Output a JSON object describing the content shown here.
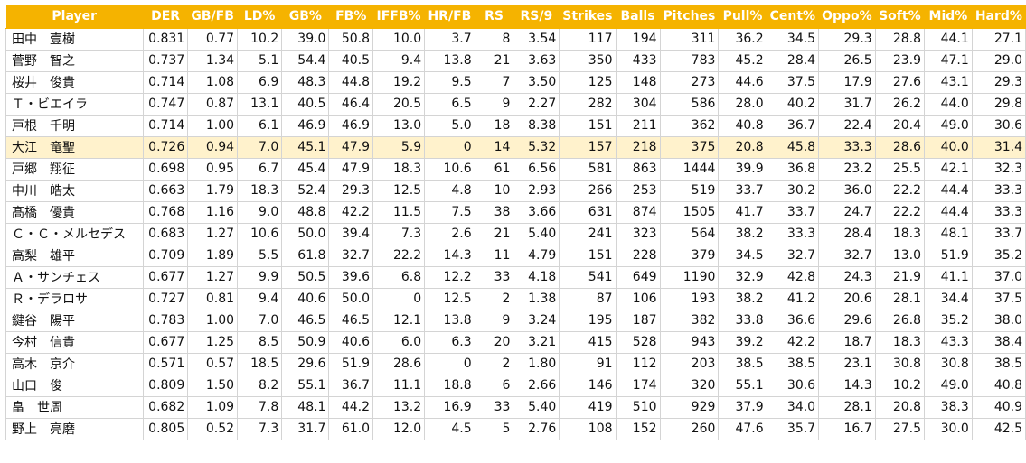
{
  "colors": {
    "header_bg": "#f5b300",
    "header_text": "#ffffff",
    "highlight_row": "#fff2cc",
    "grid": "#d4d4d4"
  },
  "columns": [
    "Player",
    "DER",
    "GB/FB",
    "LD%",
    "GB%",
    "FB%",
    "IFFB%",
    "HR/FB",
    "RS",
    "RS/9",
    "Strikes",
    "Balls",
    "Pitches",
    "Pull%",
    "Cent%",
    "Oppo%",
    "Soft%",
    "Mid%",
    "Hard%"
  ],
  "highlighted_row": 5,
  "rows": [
    [
      "田中　壹樹",
      "0.831",
      "0.77",
      "10.2",
      "39.0",
      "50.8",
      "10.0",
      "3.7",
      "8",
      "3.54",
      "117",
      "194",
      "311",
      "36.2",
      "34.5",
      "29.3",
      "28.8",
      "44.1",
      "27.1"
    ],
    [
      "菅野　智之",
      "0.737",
      "1.34",
      "5.1",
      "54.4",
      "40.5",
      "9.4",
      "13.8",
      "21",
      "3.63",
      "350",
      "433",
      "783",
      "45.2",
      "28.4",
      "26.5",
      "23.9",
      "47.1",
      "29.0"
    ],
    [
      "桜井　俊貴",
      "0.714",
      "1.08",
      "6.9",
      "48.3",
      "44.8",
      "19.2",
      "9.5",
      "7",
      "3.50",
      "125",
      "148",
      "273",
      "44.6",
      "37.5",
      "17.9",
      "27.6",
      "43.1",
      "29.3"
    ],
    [
      "Ｔ・ビエイラ",
      "0.747",
      "0.87",
      "13.1",
      "40.5",
      "46.4",
      "20.5",
      "6.5",
      "9",
      "2.27",
      "282",
      "304",
      "586",
      "28.0",
      "40.2",
      "31.7",
      "26.2",
      "44.0",
      "29.8"
    ],
    [
      "戸根　千明",
      "0.714",
      "1.00",
      "6.1",
      "46.9",
      "46.9",
      "13.0",
      "5.0",
      "18",
      "8.38",
      "151",
      "211",
      "362",
      "40.8",
      "36.7",
      "22.4",
      "20.4",
      "49.0",
      "30.6"
    ],
    [
      "大江　竜聖",
      "0.726",
      "0.94",
      "7.0",
      "45.1",
      "47.9",
      "5.9",
      "0",
      "14",
      "5.32",
      "157",
      "218",
      "375",
      "20.8",
      "45.8",
      "33.3",
      "28.6",
      "40.0",
      "31.4"
    ],
    [
      "戸郷　翔征",
      "0.698",
      "0.95",
      "6.7",
      "45.4",
      "47.9",
      "18.3",
      "10.6",
      "61",
      "6.56",
      "581",
      "863",
      "1444",
      "39.9",
      "36.8",
      "23.2",
      "25.5",
      "42.1",
      "32.3"
    ],
    [
      "中川　皓太",
      "0.663",
      "1.79",
      "18.3",
      "52.4",
      "29.3",
      "12.5",
      "4.8",
      "10",
      "2.93",
      "266",
      "253",
      "519",
      "33.7",
      "30.2",
      "36.0",
      "22.2",
      "44.4",
      "33.3"
    ],
    [
      "髙橋　優貴",
      "0.768",
      "1.16",
      "9.0",
      "48.8",
      "42.2",
      "11.5",
      "7.5",
      "38",
      "3.66",
      "631",
      "874",
      "1505",
      "41.7",
      "33.7",
      "24.7",
      "22.2",
      "44.4",
      "33.3"
    ],
    [
      "Ｃ・Ｃ・メルセデス",
      "0.683",
      "1.27",
      "10.6",
      "50.0",
      "39.4",
      "7.3",
      "2.6",
      "21",
      "5.40",
      "241",
      "323",
      "564",
      "38.2",
      "33.3",
      "28.4",
      "18.3",
      "48.1",
      "33.7"
    ],
    [
      "高梨　雄平",
      "0.709",
      "1.89",
      "5.5",
      "61.8",
      "32.7",
      "22.2",
      "14.3",
      "11",
      "4.79",
      "151",
      "228",
      "379",
      "34.5",
      "32.7",
      "32.7",
      "13.0",
      "51.9",
      "35.2"
    ],
    [
      "Ａ・サンチェス",
      "0.677",
      "1.27",
      "9.9",
      "50.5",
      "39.6",
      "6.8",
      "12.2",
      "33",
      "4.18",
      "541",
      "649",
      "1190",
      "32.9",
      "42.8",
      "24.3",
      "21.9",
      "41.1",
      "37.0"
    ],
    [
      "Ｒ・デラロサ",
      "0.727",
      "0.81",
      "9.4",
      "40.6",
      "50.0",
      "0",
      "12.5",
      "2",
      "1.38",
      "87",
      "106",
      "193",
      "38.2",
      "41.2",
      "20.6",
      "28.1",
      "34.4",
      "37.5"
    ],
    [
      "鍵谷　陽平",
      "0.783",
      "1.00",
      "7.0",
      "46.5",
      "46.5",
      "12.1",
      "13.8",
      "9",
      "3.24",
      "195",
      "187",
      "382",
      "33.8",
      "36.6",
      "29.6",
      "26.8",
      "35.2",
      "38.0"
    ],
    [
      "今村　信貴",
      "0.677",
      "1.25",
      "8.5",
      "50.9",
      "40.6",
      "6.0",
      "6.3",
      "20",
      "3.21",
      "415",
      "528",
      "943",
      "39.2",
      "42.2",
      "18.7",
      "18.3",
      "43.3",
      "38.4"
    ],
    [
      "高木　京介",
      "0.571",
      "0.57",
      "18.5",
      "29.6",
      "51.9",
      "28.6",
      "0",
      "2",
      "1.80",
      "91",
      "112",
      "203",
      "38.5",
      "38.5",
      "23.1",
      "30.8",
      "30.8",
      "38.5"
    ],
    [
      "山口　俊",
      "0.809",
      "1.50",
      "8.2",
      "55.1",
      "36.7",
      "11.1",
      "18.8",
      "6",
      "2.66",
      "146",
      "174",
      "320",
      "55.1",
      "30.6",
      "14.3",
      "10.2",
      "49.0",
      "40.8"
    ],
    [
      "畠　世周",
      "0.682",
      "1.09",
      "7.8",
      "48.1",
      "44.2",
      "13.2",
      "16.9",
      "33",
      "5.40",
      "419",
      "510",
      "929",
      "37.9",
      "34.0",
      "28.1",
      "20.8",
      "38.3",
      "40.9"
    ],
    [
      "野上　亮磨",
      "0.805",
      "0.52",
      "7.3",
      "31.7",
      "61.0",
      "12.0",
      "4.5",
      "5",
      "2.76",
      "108",
      "152",
      "260",
      "47.6",
      "35.7",
      "16.7",
      "27.5",
      "30.0",
      "42.5"
    ]
  ]
}
